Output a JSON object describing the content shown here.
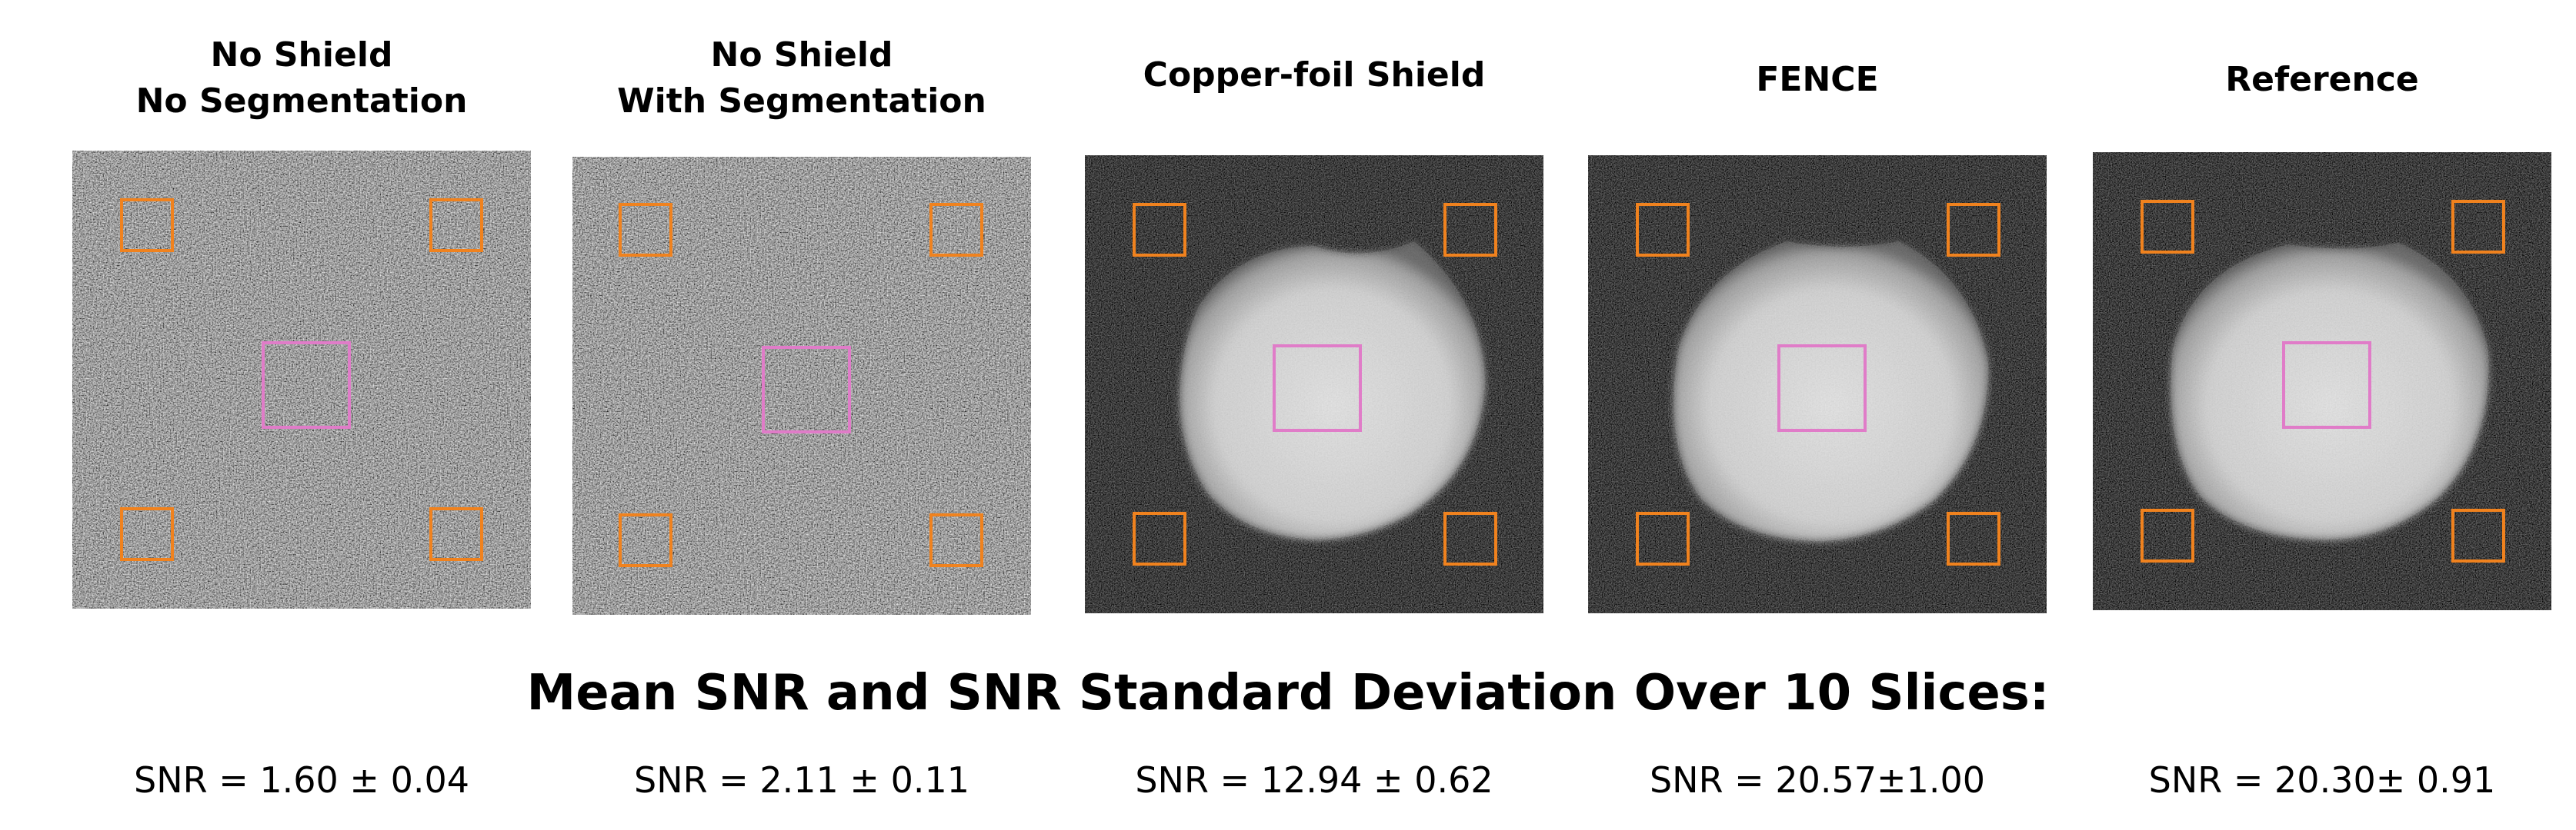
{
  "panels": [
    {
      "title_lines": [
        "No Shield",
        "No Segmentation"
      ],
      "snr": "SNR = 1.60 ± 0.04",
      "image": "noise-only"
    },
    {
      "title_lines": [
        "No Shield",
        "With Segmentation"
      ],
      "snr": "SNR = 2.11 ± 0.11",
      "image": "noise-only"
    },
    {
      "title_lines": [
        "Copper-foil Shield"
      ],
      "snr": "SNR = 12.94 ± 0.62",
      "image": "phantom-disc"
    },
    {
      "title_lines": [
        "FENCE"
      ],
      "snr": "SNR = 20.57±1.00",
      "image": "phantom-disc"
    },
    {
      "title_lines": [
        "Reference"
      ],
      "snr": "SNR = 20.30± 0.91",
      "image": "phantom-disc"
    }
  ],
  "section_title": "Mean SNR and SNR Standard Deviation Over 10 Slices:",
  "colors": {
    "noise_roi": "#f0821e",
    "signal_roi": "#e07cc8",
    "background": "#0b0b0b"
  }
}
